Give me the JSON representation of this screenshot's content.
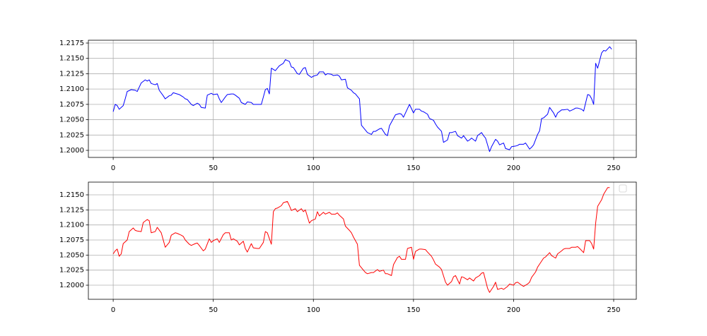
{
  "chart_data": [
    {
      "type": "line",
      "x": [
        0,
        1,
        2,
        3,
        5,
        6,
        7,
        9,
        11,
        12,
        14,
        16,
        17,
        18,
        19,
        21,
        22,
        23,
        25,
        26,
        28,
        29,
        30,
        32,
        33,
        35,
        36,
        37,
        39,
        40,
        42,
        43,
        44,
        46,
        47,
        49,
        50,
        52,
        53,
        54,
        56,
        57,
        59,
        60,
        61,
        63,
        64,
        66,
        67,
        69,
        70,
        71,
        74,
        76,
        77,
        78,
        79,
        81,
        82,
        83,
        85,
        86,
        88,
        89,
        90,
        92,
        93,
        95,
        96,
        97,
        99,
        100,
        102,
        103,
        105,
        106,
        107,
        109,
        110,
        112,
        113,
        114,
        116,
        117,
        119,
        120,
        121,
        123,
        124,
        126,
        127,
        129,
        130,
        131,
        133,
        134,
        136,
        137,
        138,
        140,
        141,
        143,
        144,
        145,
        147,
        148,
        150,
        151,
        153,
        154,
        155,
        157,
        158,
        160,
        161,
        162,
        164,
        165,
        167,
        168,
        169,
        171,
        172,
        174,
        175,
        177,
        178,
        179,
        181,
        182,
        184,
        185,
        186,
        188,
        189,
        191,
        192,
        193,
        195,
        196,
        198,
        199,
        201,
        202,
        203,
        205,
        206,
        208,
        209,
        210,
        212,
        213,
        214,
        215,
        217,
        218,
        220,
        221,
        222,
        224,
        225,
        227,
        228,
        230,
        231,
        232,
        234,
        235,
        237,
        238,
        239,
        240,
        241,
        242,
        244,
        245,
        246,
        248,
        249
      ],
      "series": [
        {
          "color": "#0000ff",
          "values": [
            1.2063,
            1.2075,
            1.2073,
            1.2067,
            1.2073,
            1.2084,
            1.2096,
            1.2099,
            1.2098,
            1.2096,
            1.211,
            1.2115,
            1.2113,
            1.2115,
            1.2109,
            1.2107,
            1.2109,
            1.2098,
            1.2089,
            1.2084,
            1.2089,
            1.209,
            1.2094,
            1.2092,
            1.2091,
            1.2087,
            1.2084,
            1.2083,
            1.2075,
            1.2073,
            1.2077,
            1.2075,
            1.207,
            1.2069,
            1.209,
            1.2093,
            1.2091,
            1.2092,
            1.2084,
            1.2078,
            1.2087,
            1.2091,
            1.2092,
            1.2092,
            1.209,
            1.2085,
            1.2078,
            1.2075,
            1.2079,
            1.2078,
            1.2075,
            1.2075,
            1.2075,
            1.2099,
            1.2101,
            1.2092,
            1.2134,
            1.213,
            1.2134,
            1.2138,
            1.2142,
            1.2148,
            1.2145,
            1.2136,
            1.2135,
            1.2125,
            1.2124,
            1.2134,
            1.2135,
            1.2124,
            1.2119,
            1.2121,
            1.2123,
            1.2128,
            1.2128,
            1.2123,
            1.2125,
            1.2124,
            1.2122,
            1.2123,
            1.2121,
            1.2115,
            1.2116,
            1.2102,
            1.2098,
            1.2094,
            1.2092,
            1.2084,
            1.2041,
            1.2033,
            1.2029,
            1.2026,
            1.2031,
            1.2031,
            1.2035,
            1.2036,
            1.2026,
            1.2024,
            1.204,
            1.2052,
            1.2058,
            1.206,
            1.2059,
            1.2054,
            1.2068,
            1.2075,
            1.2061,
            1.2067,
            1.2067,
            1.2064,
            1.2063,
            1.2059,
            1.2052,
            1.2049,
            1.2043,
            1.2038,
            1.2031,
            1.2013,
            1.2017,
            1.2029,
            1.2029,
            1.2031,
            1.2024,
            1.202,
            1.2024,
            1.2015,
            1.2017,
            1.202,
            1.2015,
            1.2024,
            1.2029,
            1.2024,
            1.202,
            1.1998,
            1.2006,
            1.2018,
            1.2015,
            1.2009,
            1.2012,
            1.2003,
            1.2001,
            1.2006,
            1.2007,
            1.2008,
            1.201,
            1.201,
            1.2012,
            1.2002,
            1.2005,
            1.2009,
            1.2026,
            1.2032,
            1.2052,
            1.2053,
            1.2059,
            1.207,
            1.2061,
            1.2054,
            1.2061,
            1.2066,
            1.2066,
            1.2067,
            1.2064,
            1.2067,
            1.2069,
            1.2069,
            1.2067,
            1.2064,
            1.2091,
            1.209,
            1.2084,
            1.2075,
            1.2142,
            1.2134,
            1.2159,
            1.2163,
            1.2162,
            1.2169,
            1.2165
          ]
        }
      ],
      "xlim": [
        -12.4,
        261.3
      ],
      "xticks": [
        0,
        50,
        100,
        150,
        200,
        250
      ],
      "ylim": [
        1.19885,
        1.21796
      ],
      "yticks": [
        {
          "value": 1.2,
          "label": "1.2000"
        },
        {
          "value": 1.2025,
          "label": "1.2025"
        },
        {
          "value": 1.205,
          "label": "1.2050"
        },
        {
          "value": 1.2075,
          "label": "1.2075"
        },
        {
          "value": 1.21,
          "label": "1.2100"
        },
        {
          "value": 1.2125,
          "label": "1.2125"
        },
        {
          "value": 1.215,
          "label": "1.2150"
        },
        {
          "value": 1.2175,
          "label": "1.2175"
        }
      ],
      "grid": true
    },
    {
      "type": "line",
      "x": [
        0,
        1,
        2,
        3,
        4,
        5,
        7,
        8,
        10,
        11,
        12,
        14,
        15,
        17,
        18,
        19,
        21,
        22,
        24,
        25,
        26,
        28,
        29,
        31,
        32,
        34,
        35,
        36,
        38,
        39,
        41,
        42,
        43,
        45,
        46,
        48,
        49,
        50,
        52,
        53,
        55,
        56,
        58,
        59,
        60,
        62,
        63,
        65,
        66,
        67,
        69,
        70,
        72,
        73,
        75,
        76,
        77,
        79,
        80,
        81,
        82,
        84,
        85,
        87,
        88,
        89,
        91,
        92,
        94,
        95,
        96,
        98,
        99,
        101,
        102,
        103,
        105,
        106,
        108,
        109,
        111,
        112,
        113,
        115,
        116,
        118,
        119,
        120,
        122,
        123,
        125,
        126,
        127,
        129,
        130,
        132,
        133,
        135,
        136,
        137,
        139,
        140,
        142,
        143,
        144,
        146,
        147,
        149,
        150,
        151,
        153,
        154,
        156,
        157,
        159,
        160,
        161,
        163,
        164,
        166,
        167,
        169,
        170,
        171,
        173,
        174,
        175,
        177,
        178,
        180,
        181,
        183,
        184,
        185,
        187,
        188,
        190,
        191,
        192,
        194,
        195,
        197,
        198,
        200,
        201,
        202,
        204,
        205,
        207,
        208,
        209,
        211,
        212,
        214,
        215,
        216,
        218,
        219,
        221,
        222,
        224,
        225,
        226,
        228,
        229,
        231,
        232,
        233,
        235,
        236,
        238,
        239,
        240,
        241,
        242,
        244,
        245,
        247,
        248
      ],
      "series": [
        {
          "color": "#ff0000",
          "values": [
            1.2052,
            1.2057,
            1.206,
            1.2048,
            1.2052,
            1.2069,
            1.2075,
            1.2089,
            1.2095,
            1.2091,
            1.209,
            1.2089,
            1.2104,
            1.2109,
            1.2107,
            1.2087,
            1.2089,
            1.2096,
            1.2087,
            1.2075,
            1.2063,
            1.2071,
            1.2083,
            1.2087,
            1.2086,
            1.2083,
            1.2081,
            1.2075,
            1.2068,
            1.2066,
            1.2069,
            1.207,
            1.2066,
            1.2057,
            1.206,
            1.2077,
            1.2071,
            1.2074,
            1.2077,
            1.2071,
            1.2084,
            1.2087,
            1.2087,
            1.2075,
            1.2077,
            1.2073,
            1.2067,
            1.2073,
            1.2061,
            1.2055,
            1.2069,
            1.2062,
            1.2061,
            1.2061,
            1.2071,
            1.2089,
            1.2087,
            1.2068,
            1.2122,
            1.2127,
            1.2128,
            1.2132,
            1.2137,
            1.2139,
            1.2132,
            1.2124,
            1.2127,
            1.2122,
            1.2127,
            1.2122,
            1.2125,
            1.2103,
            1.2107,
            1.211,
            1.2122,
            1.2115,
            1.2121,
            1.2118,
            1.2121,
            1.2118,
            1.2118,
            1.212,
            1.2116,
            1.211,
            1.2098,
            1.2091,
            1.2087,
            1.208,
            1.2068,
            1.2033,
            1.2025,
            1.2021,
            1.2019,
            1.2021,
            1.2021,
            1.2026,
            1.2023,
            1.2025,
            1.2019,
            1.2019,
            1.2016,
            1.2034,
            1.2046,
            1.2048,
            1.2043,
            1.2043,
            1.2061,
            1.2063,
            1.2043,
            1.2056,
            1.206,
            1.206,
            1.2059,
            1.2055,
            1.2048,
            1.2042,
            1.2035,
            1.203,
            1.2026,
            1.2005,
            1.2,
            1.2006,
            1.2014,
            1.2016,
            1.2002,
            1.2014,
            1.2013,
            1.2009,
            1.2012,
            1.2007,
            1.2012,
            1.2016,
            1.202,
            1.2021,
            1.1995,
            1.1988,
            1.1998,
            1.2005,
            1.1993,
            1.1995,
            1.1993,
            1.1998,
            1.2002,
            1.2,
            1.2004,
            1.2005,
            1.2,
            1.1998,
            1.2002,
            1.2005,
            1.2013,
            1.2022,
            1.203,
            1.204,
            1.2045,
            1.2047,
            1.2054,
            1.2049,
            1.2045,
            1.2052,
            1.2057,
            1.206,
            1.2061,
            1.2061,
            1.2063,
            1.2063,
            1.2064,
            1.2061,
            1.2054,
            1.2074,
            1.2074,
            1.2069,
            1.206,
            1.2103,
            1.2131,
            1.2142,
            1.2151,
            1.2162,
            1.2162
          ]
        }
      ],
      "xlim": [
        -12.4,
        261.3
      ],
      "xticks": [
        0,
        50,
        100,
        150,
        200,
        250
      ],
      "ylim": [
        1.19766,
        1.21711
      ],
      "yticks": [
        {
          "value": 1.2,
          "label": "1.2000"
        },
        {
          "value": 1.2025,
          "label": "1.2025"
        },
        {
          "value": 1.205,
          "label": "1.2050"
        },
        {
          "value": 1.2075,
          "label": "1.2075"
        },
        {
          "value": 1.21,
          "label": "1.2100"
        },
        {
          "value": 1.2125,
          "label": "1.2125"
        },
        {
          "value": 1.215,
          "label": "1.2150"
        }
      ],
      "grid": true,
      "legend": "upper right"
    }
  ]
}
